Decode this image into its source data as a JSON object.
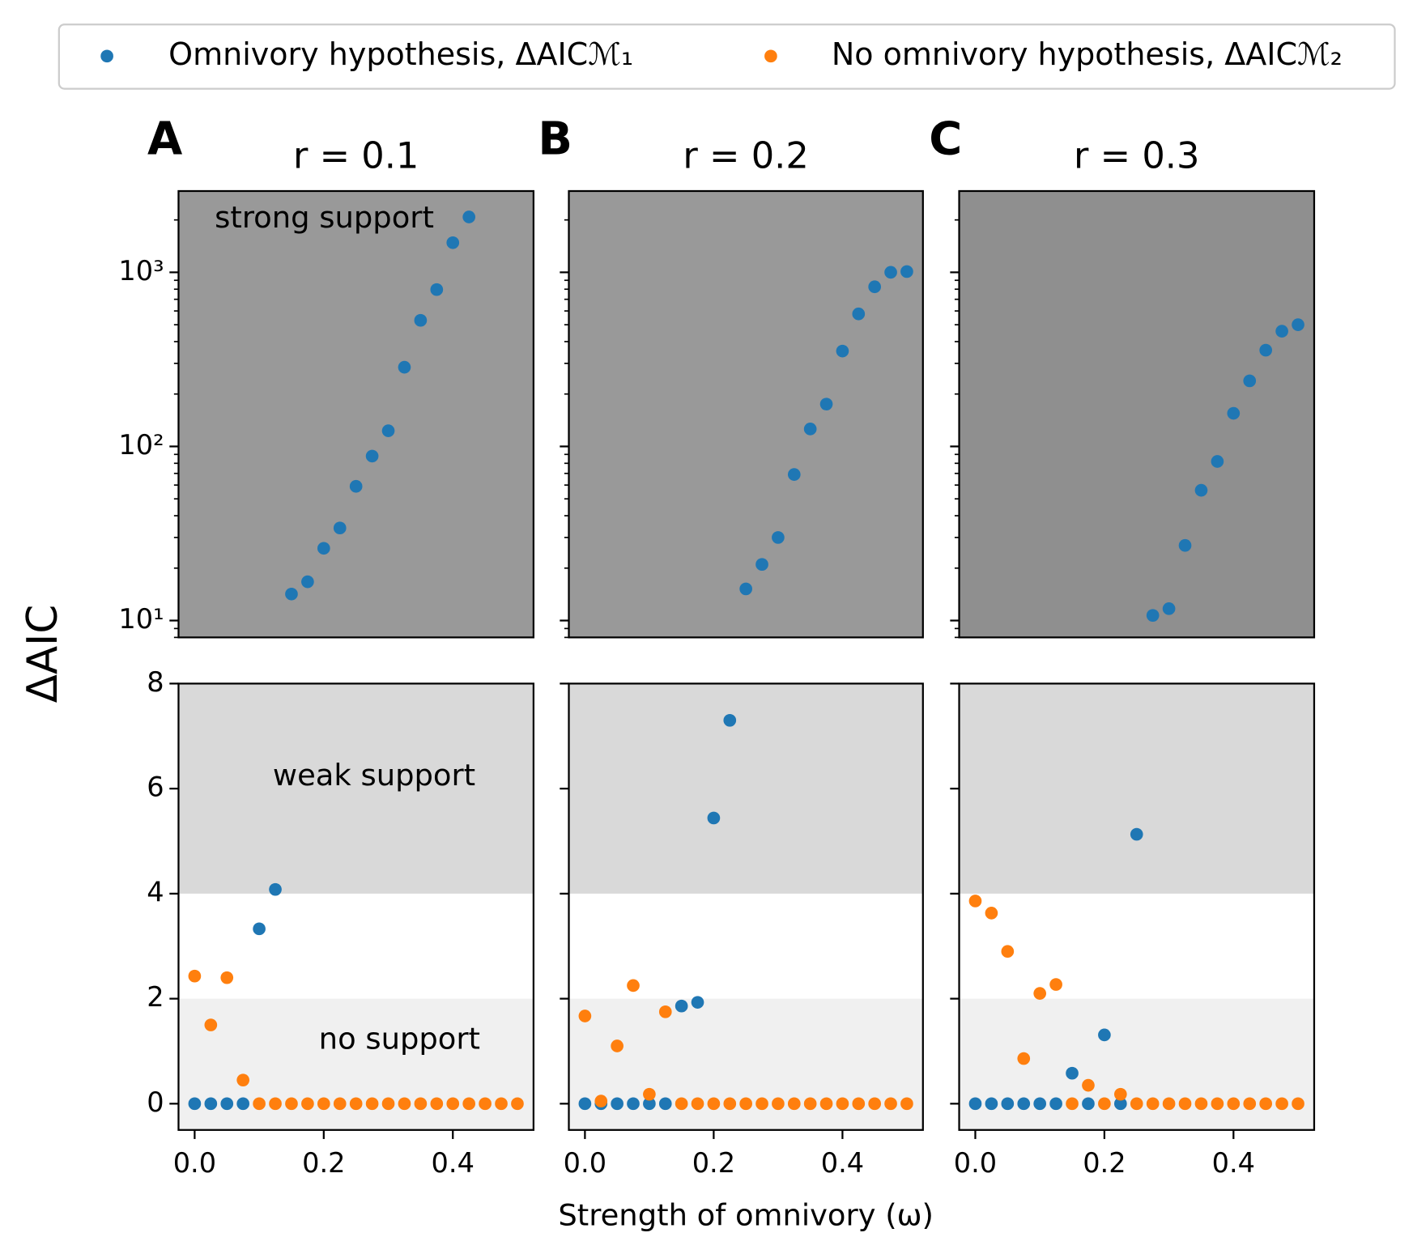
{
  "chart_data": [
    {
      "type": "scatter",
      "label": "A",
      "title": "r = 0.1",
      "ylabel": "ΔAIC",
      "yscale": "log",
      "x": [
        0,
        0.025,
        0.05,
        0.075,
        0.1,
        0.125,
        0.15,
        0.175,
        0.2,
        0.225,
        0.25,
        0.275,
        0.3,
        0.325,
        0.35,
        0.375,
        0.4,
        0.425,
        0.45,
        0.475,
        0.5
      ],
      "series": [
        {
          "color": "#1f77b4",
          "values": [
            null,
            null,
            null,
            null,
            null,
            null,
            14.2,
            16.7,
            26,
            34,
            59,
            88,
            123,
            285,
            530,
            796,
            1480,
            2080,
            null,
            null,
            null
          ]
        }
      ],
      "ylim": [
        8,
        2930
      ],
      "yticks": [
        {
          "value": 10,
          "label": "10¹"
        },
        {
          "value": 100,
          "label": "10²"
        },
        {
          "value": 1000,
          "label": "10³"
        }
      ],
      "yminorticks": [
        8,
        9,
        20,
        30,
        40,
        50,
        60,
        70,
        80,
        90,
        200,
        300,
        400,
        500,
        600,
        700,
        800,
        900,
        2000
      ],
      "xlim": [
        -0.025,
        0.525
      ],
      "bands": [
        {
          "from": 8,
          "to": 2930,
          "color": "#999999"
        }
      ],
      "annotations": [
        "strong support"
      ]
    },
    {
      "type": "scatter",
      "label": "B",
      "title": "r = 0.2",
      "yscale": "log",
      "ytick_labels": false,
      "x": [
        0,
        0.025,
        0.05,
        0.075,
        0.1,
        0.125,
        0.15,
        0.175,
        0.2,
        0.225,
        0.25,
        0.275,
        0.3,
        0.325,
        0.35,
        0.375,
        0.4,
        0.425,
        0.45,
        0.475,
        0.5
      ],
      "series": [
        {
          "color": "#1f77b4",
          "values": [
            null,
            null,
            null,
            null,
            null,
            null,
            null,
            null,
            null,
            null,
            15.2,
            21,
            30,
            69,
            126,
            175,
            353,
            577,
            826,
            1000,
            1010
          ]
        }
      ],
      "ylim": [
        8,
        2930
      ],
      "yticks": [
        10,
        100,
        1000
      ],
      "yminorticks": [
        8,
        9,
        20,
        30,
        40,
        50,
        60,
        70,
        80,
        90,
        200,
        300,
        400,
        500,
        600,
        700,
        800,
        900,
        2000
      ],
      "xlim": [
        -0.025,
        0.525
      ],
      "bands": [
        {
          "from": 8,
          "to": 2930,
          "color": "#999999"
        }
      ]
    },
    {
      "type": "scatter",
      "label": "C",
      "title": "r = 0.3",
      "yscale": "log",
      "ytick_labels": false,
      "x": [
        0,
        0.025,
        0.05,
        0.075,
        0.1,
        0.125,
        0.15,
        0.175,
        0.2,
        0.225,
        0.25,
        0.275,
        0.3,
        0.325,
        0.35,
        0.375,
        0.4,
        0.425,
        0.45,
        0.475,
        0.5
      ],
      "series": [
        {
          "color": "#1f77b4",
          "values": [
            null,
            null,
            null,
            null,
            null,
            null,
            null,
            null,
            null,
            null,
            null,
            10.7,
            11.7,
            27,
            56,
            82,
            155,
            238,
            357,
            459,
            500
          ]
        }
      ],
      "ylim": [
        8,
        2930
      ],
      "yticks": [
        10,
        100,
        1000
      ],
      "yminorticks": [
        8,
        9,
        20,
        30,
        40,
        50,
        60,
        70,
        80,
        90,
        200,
        300,
        400,
        500,
        600,
        700,
        800,
        900,
        2000
      ],
      "xlim": [
        -0.025,
        0.525
      ],
      "bands": [
        {
          "from": 8,
          "to": 2930,
          "color": "#8f8f8f"
        }
      ]
    },
    {
      "type": "scatter",
      "x": [
        0,
        0.025,
        0.05,
        0.075,
        0.1,
        0.125,
        0.15,
        0.175,
        0.2,
        0.225,
        0.25,
        0.275,
        0.3,
        0.325,
        0.35,
        0.375,
        0.4,
        0.425,
        0.45,
        0.475,
        0.5
      ],
      "series": [
        {
          "name": "Omnivory hypothesis, ΔAICℳ₁",
          "color": "#1f77b4",
          "values": [
            0,
            0,
            0,
            0,
            3.33,
            4.08,
            null,
            null,
            null,
            null,
            null,
            null,
            null,
            null,
            null,
            null,
            null,
            null,
            null,
            null,
            null
          ]
        },
        {
          "name": "No omnivory hypothesis, ΔAICℳ₂",
          "color": "#ff7f0e",
          "values": [
            2.43,
            1.5,
            2.4,
            0.45,
            0,
            0,
            0,
            0,
            0,
            0,
            0,
            0,
            0,
            0,
            0,
            0,
            0,
            0,
            0,
            0,
            0
          ]
        }
      ],
      "ylim": [
        -0.5,
        8
      ],
      "yticks": [
        0,
        2,
        4,
        6,
        8
      ],
      "xlim": [
        -0.025,
        0.525
      ],
      "xticks": [
        {
          "value": 0,
          "label": "0.0"
        },
        0.2,
        0.4
      ],
      "bands": [
        {
          "from": -0.5,
          "to": 2,
          "color": "#f0f0f0"
        },
        {
          "from": 4,
          "to": 8,
          "color": "#d9d9d9"
        }
      ],
      "annotations": [
        "weak support",
        "no support"
      ]
    },
    {
      "type": "scatter",
      "xlabel": "Strength of omnivory (ω)",
      "ytick_labels": false,
      "x": [
        0,
        0.025,
        0.05,
        0.075,
        0.1,
        0.125,
        0.15,
        0.175,
        0.2,
        0.225,
        0.25,
        0.275,
        0.3,
        0.325,
        0.35,
        0.375,
        0.4,
        0.425,
        0.45,
        0.475,
        0.5
      ],
      "series": [
        {
          "color": "#1f77b4",
          "values": [
            0,
            0,
            0,
            0,
            0,
            0,
            1.86,
            1.93,
            5.44,
            7.3,
            null,
            null,
            null,
            null,
            null,
            null,
            null,
            null,
            null,
            null,
            null
          ]
        },
        {
          "color": "#ff7f0e",
          "values": [
            1.67,
            0.05,
            1.1,
            2.25,
            0.18,
            1.75,
            0,
            0,
            0,
            0,
            0,
            0,
            0,
            0,
            0,
            0,
            0,
            0,
            0,
            0,
            0
          ]
        }
      ],
      "ylim": [
        -0.5,
        8
      ],
      "yticks": [
        0,
        2,
        4,
        6,
        8
      ],
      "xlim": [
        -0.025,
        0.525
      ],
      "xticks": [
        {
          "value": 0,
          "label": "0.0"
        },
        0.2,
        0.4
      ],
      "bands": [
        {
          "from": -0.5,
          "to": 2,
          "color": "#f0f0f0"
        },
        {
          "from": 4,
          "to": 8,
          "color": "#d9d9d9"
        }
      ]
    },
    {
      "type": "scatter",
      "ytick_labels": false,
      "x": [
        0,
        0.025,
        0.05,
        0.075,
        0.1,
        0.125,
        0.15,
        0.175,
        0.2,
        0.225,
        0.25,
        0.275,
        0.3,
        0.325,
        0.35,
        0.375,
        0.4,
        0.425,
        0.45,
        0.475,
        0.5
      ],
      "series": [
        {
          "color": "#1f77b4",
          "values": [
            0,
            0,
            0,
            0,
            0,
            0,
            0.58,
            0,
            1.31,
            0,
            5.13,
            null,
            null,
            null,
            null,
            null,
            null,
            null,
            null,
            null,
            null
          ]
        },
        {
          "color": "#ff7f0e",
          "values": [
            3.86,
            3.63,
            2.9,
            0.86,
            2.1,
            2.27,
            0,
            0.35,
            0,
            0.18,
            0,
            0,
            0,
            0,
            0,
            0,
            0,
            0,
            0,
            0,
            0
          ]
        }
      ],
      "ylim": [
        -0.5,
        8
      ],
      "yticks": [
        0,
        2,
        4,
        6,
        8
      ],
      "xlim": [
        -0.025,
        0.525
      ],
      "xticks": [
        {
          "value": 0,
          "label": "0.0"
        },
        0.2,
        0.4
      ],
      "bands": [
        {
          "from": -0.5,
          "to": 2,
          "color": "#f0f0f0"
        },
        {
          "from": 4,
          "to": 8,
          "color": "#d9d9d9"
        }
      ]
    }
  ]
}
